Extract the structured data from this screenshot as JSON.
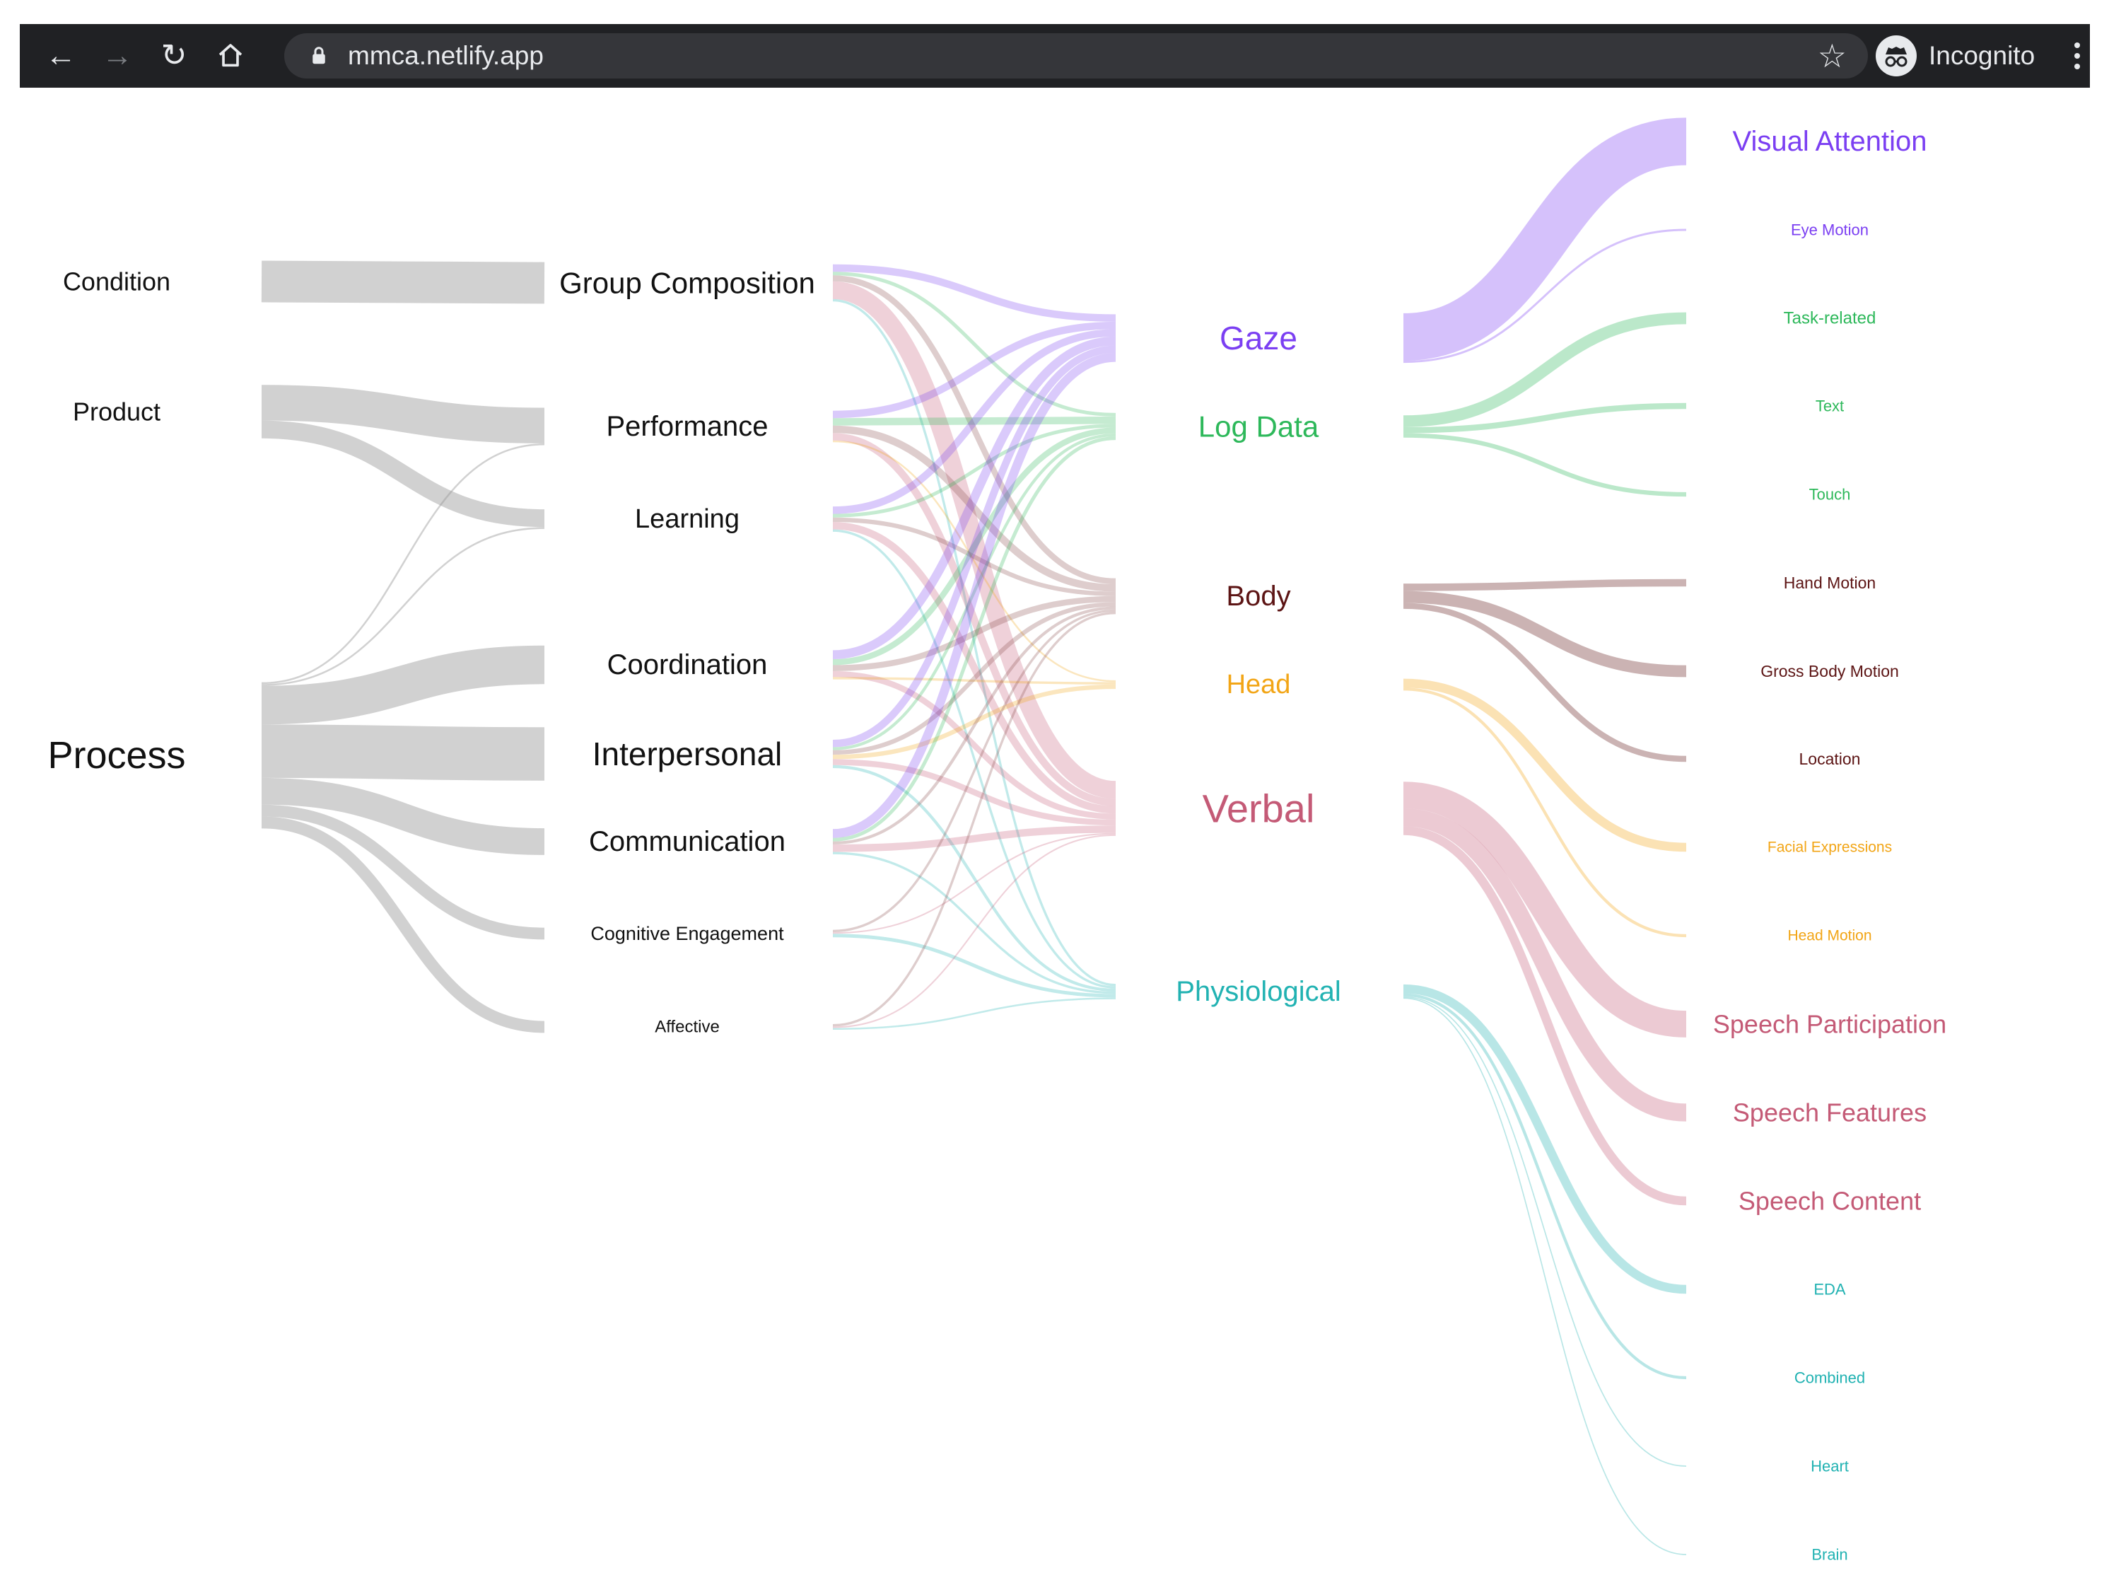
{
  "browser": {
    "url": "mmca.netlify.app",
    "incognito_label": "Incognito",
    "bar_color": "#202124",
    "omnibox_color": "#35363a",
    "icons": [
      "back-arrow-icon",
      "forward-arrow-icon",
      "reload-icon",
      "home-icon",
      "lock-icon",
      "bookmark-star-icon",
      "incognito-icon",
      "more-menu-icon"
    ]
  },
  "sankey": {
    "group_colors": {
      "gaze": "#7b3ff2",
      "logdata": "#2db85a",
      "body": "#5c1414",
      "head": "#f2a516",
      "verbal": "#c45a76",
      "physio": "#21b2b2",
      "neutral": "#999999"
    },
    "columns": [
      {
        "name": "top-level",
        "nodes": [
          {
            "id": "condition",
            "label": "Condition",
            "size": 36
          },
          {
            "id": "product",
            "label": "Product",
            "size": 36
          },
          {
            "id": "process",
            "label": "Process",
            "size": 54
          }
        ]
      },
      {
        "name": "construct",
        "nodes": [
          {
            "id": "groupcomp",
            "label": "Group Composition",
            "size": 42
          },
          {
            "id": "performance",
            "label": "Performance",
            "size": 40
          },
          {
            "id": "learning",
            "label": "Learning",
            "size": 38
          },
          {
            "id": "coordination",
            "label": "Coordination",
            "size": 40
          },
          {
            "id": "interpersonal",
            "label": "Interpersonal",
            "size": 46
          },
          {
            "id": "communication",
            "label": "Communication",
            "size": 40
          },
          {
            "id": "cognitive",
            "label": "Cognitive Engagement",
            "size": 27
          },
          {
            "id": "affective",
            "label": "Affective",
            "size": 24
          }
        ]
      },
      {
        "name": "modality",
        "nodes": [
          {
            "id": "gaze",
            "label": "Gaze",
            "size": 46,
            "group": "gaze"
          },
          {
            "id": "logdata",
            "label": "Log Data",
            "size": 42,
            "group": "logdata"
          },
          {
            "id": "body",
            "label": "Body",
            "size": 40,
            "group": "body"
          },
          {
            "id": "head",
            "label": "Head",
            "size": 38,
            "group": "head"
          },
          {
            "id": "verbal",
            "label": "Verbal",
            "size": 56,
            "group": "verbal"
          },
          {
            "id": "physio",
            "label": "Physiological",
            "size": 40,
            "group": "physio"
          }
        ]
      },
      {
        "name": "feature",
        "nodes": [
          {
            "id": "visualattention",
            "label": "Visual Attention",
            "size": 40,
            "group": "gaze"
          },
          {
            "id": "eyemotion",
            "label": "Eye Motion",
            "size": 22,
            "group": "gaze"
          },
          {
            "id": "taskrelated",
            "label": "Task-related",
            "size": 24,
            "group": "logdata"
          },
          {
            "id": "text",
            "label": "Text",
            "size": 22,
            "group": "logdata"
          },
          {
            "id": "touch",
            "label": "Touch",
            "size": 22,
            "group": "logdata"
          },
          {
            "id": "handmotion",
            "label": "Hand Motion",
            "size": 23,
            "group": "body"
          },
          {
            "id": "grossbody",
            "label": "Gross Body Motion",
            "size": 23,
            "group": "body"
          },
          {
            "id": "location",
            "label": "Location",
            "size": 23,
            "group": "body"
          },
          {
            "id": "facial",
            "label": "Facial Expressions",
            "size": 21,
            "group": "head"
          },
          {
            "id": "headmotion",
            "label": "Head Motion",
            "size": 21,
            "group": "head"
          },
          {
            "id": "speechpart",
            "label": "Speech Participation",
            "size": 36,
            "group": "verbal"
          },
          {
            "id": "speechfeat",
            "label": "Speech Features",
            "size": 36,
            "group": "verbal"
          },
          {
            "id": "speechcont",
            "label": "Speech Content",
            "size": 36,
            "group": "verbal"
          },
          {
            "id": "eda",
            "label": "EDA",
            "size": 22,
            "group": "physio"
          },
          {
            "id": "combined",
            "label": "Combined",
            "size": 22,
            "group": "physio"
          },
          {
            "id": "heart",
            "label": "Heart",
            "size": 22,
            "group": "physio"
          },
          {
            "id": "brain",
            "label": "Brain",
            "size": 22,
            "group": "physio"
          }
        ]
      }
    ],
    "links": [
      {
        "source": "condition",
        "target": "groupcomp",
        "value": 14
      },
      {
        "source": "product",
        "target": "performance",
        "value": 12
      },
      {
        "source": "product",
        "target": "learning",
        "value": 6
      },
      {
        "source": "process",
        "target": "performance",
        "value": 0.6
      },
      {
        "source": "process",
        "target": "learning",
        "value": 0.6
      },
      {
        "source": "process",
        "target": "coordination",
        "value": 13
      },
      {
        "source": "process",
        "target": "interpersonal",
        "value": 18
      },
      {
        "source": "process",
        "target": "communication",
        "value": 9
      },
      {
        "source": "process",
        "target": "cognitive",
        "value": 4
      },
      {
        "source": "process",
        "target": "affective",
        "value": 4
      },
      {
        "source": "groupcomp",
        "target": "gaze",
        "value": 2.5
      },
      {
        "source": "groupcomp",
        "target": "logdata",
        "value": 1.2
      },
      {
        "source": "groupcomp",
        "target": "body",
        "value": 2
      },
      {
        "source": "groupcomp",
        "target": "verbal",
        "value": 6
      },
      {
        "source": "groupcomp",
        "target": "physio",
        "value": 0.8
      },
      {
        "source": "performance",
        "target": "gaze",
        "value": 2.5
      },
      {
        "source": "performance",
        "target": "logdata",
        "value": 2.5
      },
      {
        "source": "performance",
        "target": "body",
        "value": 2.5
      },
      {
        "source": "performance",
        "target": "verbal",
        "value": 2.5
      },
      {
        "source": "performance",
        "target": "head",
        "value": 0.6
      },
      {
        "source": "learning",
        "target": "gaze",
        "value": 2.5
      },
      {
        "source": "learning",
        "target": "logdata",
        "value": 1.2
      },
      {
        "source": "learning",
        "target": "body",
        "value": 1.5
      },
      {
        "source": "learning",
        "target": "verbal",
        "value": 2.5
      },
      {
        "source": "learning",
        "target": "physio",
        "value": 0.8
      },
      {
        "source": "coordination",
        "target": "gaze",
        "value": 3
      },
      {
        "source": "coordination",
        "target": "logdata",
        "value": 2
      },
      {
        "source": "coordination",
        "target": "body",
        "value": 2
      },
      {
        "source": "coordination",
        "target": "verbal",
        "value": 2
      },
      {
        "source": "coordination",
        "target": "head",
        "value": 0.8
      },
      {
        "source": "interpersonal",
        "target": "gaze",
        "value": 2.5
      },
      {
        "source": "interpersonal",
        "target": "logdata",
        "value": 1
      },
      {
        "source": "interpersonal",
        "target": "body",
        "value": 1.5
      },
      {
        "source": "interpersonal",
        "target": "head",
        "value": 1.5
      },
      {
        "source": "interpersonal",
        "target": "verbal",
        "value": 2
      },
      {
        "source": "interpersonal",
        "target": "physio",
        "value": 1
      },
      {
        "source": "communication",
        "target": "gaze",
        "value": 3
      },
      {
        "source": "communication",
        "target": "logdata",
        "value": 1.2
      },
      {
        "source": "communication",
        "target": "body",
        "value": 1
      },
      {
        "source": "communication",
        "target": "verbal",
        "value": 2.5
      },
      {
        "source": "communication",
        "target": "physio",
        "value": 0.8
      },
      {
        "source": "cognitive",
        "target": "body",
        "value": 0.8
      },
      {
        "source": "cognitive",
        "target": "verbal",
        "value": 0.5
      },
      {
        "source": "cognitive",
        "target": "physio",
        "value": 1.2
      },
      {
        "source": "affective",
        "target": "body",
        "value": 0.8
      },
      {
        "source": "affective",
        "target": "verbal",
        "value": 0.5
      },
      {
        "source": "affective",
        "target": "physio",
        "value": 0.6
      },
      {
        "source": "gaze",
        "target": "visualattention",
        "value": 16
      },
      {
        "source": "gaze",
        "target": "eyemotion",
        "value": 0.7
      },
      {
        "source": "logdata",
        "target": "taskrelated",
        "value": 4
      },
      {
        "source": "logdata",
        "target": "text",
        "value": 2
      },
      {
        "source": "logdata",
        "target": "touch",
        "value": 1.5
      },
      {
        "source": "body",
        "target": "handmotion",
        "value": 2.5
      },
      {
        "source": "body",
        "target": "grossbody",
        "value": 4
      },
      {
        "source": "body",
        "target": "location",
        "value": 2
      },
      {
        "source": "head",
        "target": "facial",
        "value": 3
      },
      {
        "source": "head",
        "target": "headmotion",
        "value": 1
      },
      {
        "source": "verbal",
        "target": "speechpart",
        "value": 9
      },
      {
        "source": "verbal",
        "target": "speechfeat",
        "value": 6
      },
      {
        "source": "verbal",
        "target": "speechcont",
        "value": 3
      },
      {
        "source": "physio",
        "target": "eda",
        "value": 3
      },
      {
        "source": "physio",
        "target": "combined",
        "value": 1
      },
      {
        "source": "physio",
        "target": "heart",
        "value": 0.4
      },
      {
        "source": "physio",
        "target": "brain",
        "value": 0.4
      }
    ]
  }
}
